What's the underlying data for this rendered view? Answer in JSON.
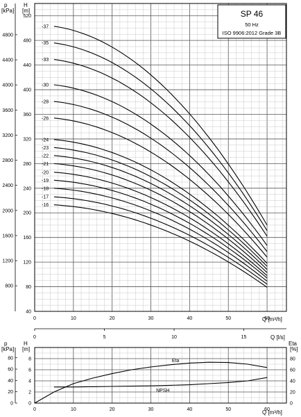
{
  "chart_data": [
    {
      "type": "line",
      "title_box": {
        "model": "SP 46",
        "frequency": "50 Hz",
        "standard": "ISO 9906:2012 Grade 3B"
      },
      "axes": {
        "y_left_unit": "p",
        "y_left_unit2": "[kPa]",
        "y_head_unit": "H",
        "y_head_unit2": "[m]",
        "x_label": "Q [m³/h]",
        "x2_label": "Q [l/s]"
      },
      "xlim": [
        0,
        65
      ],
      "ylim": [
        40,
        540
      ],
      "x_ticks": [
        0,
        10,
        20,
        30,
        40,
        50,
        60
      ],
      "x2_ticks": [
        0,
        5,
        10,
        15
      ],
      "y_ticks": [
        40,
        80,
        120,
        160,
        200,
        240,
        280,
        320,
        360,
        400,
        440,
        480,
        520
      ],
      "p_ticks": [
        800,
        1200,
        1600,
        2000,
        2400,
        2800,
        3200,
        3600,
        4000,
        4400,
        4800
      ],
      "p_tick_labels": [
        "800",
        "1200",
        "1600",
        "2000",
        "2400",
        "2800",
        "3200",
        "3600",
        "4000",
        "4400",
        "4800"
      ],
      "stage_labels": [
        "-37",
        "-35",
        "-33",
        "-30",
        "-28",
        "-26",
        "-24",
        "-23",
        "-22",
        "-21",
        "-20",
        "-19",
        "-18",
        "-17",
        "-16"
      ],
      "series": [
        {
          "name": "-37",
          "x": [
            5,
            60
          ],
          "y": [
            503,
            180
          ]
        },
        {
          "name": "-35",
          "x": [
            5,
            60
          ],
          "y": [
            476,
            171
          ]
        },
        {
          "name": "-33",
          "x": [
            5,
            60
          ],
          "y": [
            449,
            162
          ]
        },
        {
          "name": "-30",
          "x": [
            5,
            60
          ],
          "y": [
            408,
            147
          ]
        },
        {
          "name": "-28",
          "x": [
            5,
            60
          ],
          "y": [
            381,
            137
          ]
        },
        {
          "name": "-26",
          "x": [
            5,
            60
          ],
          "y": [
            354,
            128
          ]
        },
        {
          "name": "-24",
          "x": [
            5,
            60
          ],
          "y": [
            319,
            118
          ]
        },
        {
          "name": "-23",
          "x": [
            5,
            60
          ],
          "y": [
            306,
            113
          ]
        },
        {
          "name": "-22",
          "x": [
            5,
            60
          ],
          "y": [
            293,
            108
          ]
        },
        {
          "name": "-21",
          "x": [
            5,
            60
          ],
          "y": [
            280,
            103
          ]
        },
        {
          "name": "-20",
          "x": [
            5,
            60
          ],
          "y": [
            266,
            98
          ]
        },
        {
          "name": "-19",
          "x": [
            5,
            60
          ],
          "y": [
            253,
            94
          ]
        },
        {
          "name": "-18",
          "x": [
            5,
            60
          ],
          "y": [
            240,
            89
          ]
        },
        {
          "name": "-17",
          "x": [
            5,
            60
          ],
          "y": [
            226,
            84
          ]
        },
        {
          "name": "-16",
          "x": [
            5,
            60
          ],
          "y": [
            213,
            79
          ]
        }
      ]
    },
    {
      "type": "line",
      "axes": {
        "y_left_unit": "p",
        "y_left_unit2": "[kPa]",
        "y_head_unit": "H",
        "y_head_unit2": "[m]",
        "y_right_unit": "Eta",
        "y_right_unit2": "[%]",
        "x_label": "Q [m³/h]"
      },
      "xlim": [
        0,
        65
      ],
      "ylim": [
        0,
        10
      ],
      "x_ticks": [
        0,
        10,
        20,
        30,
        40,
        50,
        60
      ],
      "y_ticks": [
        0,
        2,
        4,
        6,
        8
      ],
      "p_ticks": [
        0,
        20,
        40,
        60,
        80
      ],
      "eta_ticks": [
        0,
        20,
        40,
        60,
        80
      ],
      "series": [
        {
          "name": "Eta",
          "axis": "eta",
          "x": [
            0,
            5,
            10,
            15,
            20,
            25,
            30,
            35,
            40,
            45,
            50,
            55,
            60
          ],
          "y": [
            0,
            20,
            35,
            45,
            53,
            60,
            65,
            69,
            72,
            73.5,
            73,
            70,
            64
          ]
        },
        {
          "name": "NPSH",
          "axis": "H",
          "x": [
            5,
            10,
            15,
            20,
            25,
            30,
            35,
            40,
            45,
            50,
            55,
            60
          ],
          "y": [
            2.9,
            2.9,
            2.95,
            3.0,
            3.05,
            3.1,
            3.2,
            3.3,
            3.5,
            3.7,
            4.0,
            4.6
          ]
        }
      ]
    }
  ]
}
